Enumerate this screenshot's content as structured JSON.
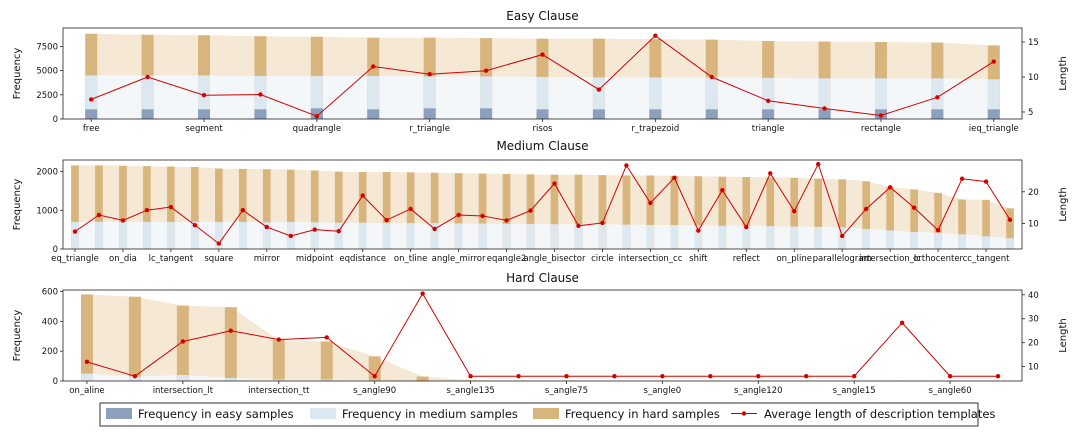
{
  "colors": {
    "easy": "#8c9fbd",
    "medium": "#dde7ef",
    "hard": "#d9b57e",
    "band": "#f5e9d6",
    "line": "#d40000"
  },
  "legend": {
    "easy": "Frequency in easy samples",
    "medium": "Frequency in medium samples",
    "hard": "Frequency in hard samples",
    "line": "Average length of description templates"
  },
  "chart_data": [
    {
      "type": "bar",
      "title": "Easy Clause",
      "ylabel": "Frequency",
      "y2label": "Length",
      "ylim": [
        0,
        9400
      ],
      "y2lim": [
        4,
        17
      ],
      "yticks": [
        0,
        2500,
        5000,
        7500
      ],
      "y2ticks": [
        5,
        10,
        15
      ],
      "categories": [
        "free",
        "segment",
        "quadrangle",
        "r_triangle",
        "risos",
        "r_trapezoid",
        "triangle",
        "rectangle",
        "ieq_triangle"
      ],
      "bars": [
        {
          "easy": 1000,
          "medium": 4500,
          "hard": 8800
        },
        {
          "easy": 1000,
          "medium": 4500,
          "hard": 8700
        },
        {
          "easy": 1000,
          "medium": 4500,
          "hard": 8650
        },
        {
          "easy": 1000,
          "medium": 4450,
          "hard": 8550
        },
        {
          "easy": 1100,
          "medium": 4450,
          "hard": 8500
        },
        {
          "easy": 1000,
          "medium": 4450,
          "hard": 8400
        },
        {
          "easy": 1100,
          "medium": 4400,
          "hard": 8400
        },
        {
          "easy": 1100,
          "medium": 4400,
          "hard": 8350
        },
        {
          "easy": 1000,
          "medium": 4350,
          "hard": 8300
        },
        {
          "easy": 1000,
          "medium": 4300,
          "hard": 8300
        },
        {
          "easy": 1000,
          "medium": 4300,
          "hard": 8250
        },
        {
          "easy": 1000,
          "medium": 4300,
          "hard": 8200
        },
        {
          "easy": 1000,
          "medium": 4250,
          "hard": 8050
        },
        {
          "easy": 1000,
          "medium": 4200,
          "hard": 8000
        },
        {
          "easy": 1000,
          "medium": 4200,
          "hard": 7950
        },
        {
          "easy": 1000,
          "medium": 4200,
          "hard": 7900
        },
        {
          "easy": 1000,
          "medium": 4100,
          "hard": 7600
        }
      ],
      "length": [
        6.8,
        10.0,
        7.4,
        7.5,
        4.4,
        11.5,
        10.4,
        10.9,
        13.2,
        8.2,
        15.9,
        10.0,
        6.6,
        5.5,
        4.5,
        7.1,
        12.2
      ]
    },
    {
      "type": "bar",
      "title": "Medium Clause",
      "ylabel": "Frequency",
      "y2label": "Length",
      "ylim": [
        0,
        2300
      ],
      "y2lim": [
        2,
        30
      ],
      "yticks": [
        0,
        1000,
        2000
      ],
      "y2ticks": [
        10,
        20
      ],
      "categories": [
        "eq_triangle",
        "on_dia",
        "lc_tangent",
        "square",
        "mirror",
        "midpoint",
        "eqdistance",
        "on_tline",
        "angle_mirror",
        "eqangle2",
        "angle_bisector",
        "circle",
        "intersection_cc",
        "shift",
        "reflect",
        "on_pline",
        "parallelogram",
        "intersection_lc",
        "orthocenter",
        "cc_tangent"
      ],
      "bars": [
        {
          "easy": 0,
          "medium": 700,
          "hard": 2160
        },
        {
          "easy": 0,
          "medium": 700,
          "hard": 2160
        },
        {
          "easy": 0,
          "medium": 700,
          "hard": 2150
        },
        {
          "easy": 0,
          "medium": 700,
          "hard": 2140
        },
        {
          "easy": 0,
          "medium": 700,
          "hard": 2130
        },
        {
          "easy": 0,
          "medium": 700,
          "hard": 2120
        },
        {
          "easy": 0,
          "medium": 700,
          "hard": 2080
        },
        {
          "easy": 0,
          "medium": 700,
          "hard": 2070
        },
        {
          "easy": 0,
          "medium": 690,
          "hard": 2060
        },
        {
          "easy": 0,
          "medium": 700,
          "hard": 2050
        },
        {
          "easy": 0,
          "medium": 690,
          "hard": 2030
        },
        {
          "easy": 0,
          "medium": 680,
          "hard": 2000
        },
        {
          "easy": 0,
          "medium": 680,
          "hard": 1990
        },
        {
          "easy": 0,
          "medium": 670,
          "hard": 1990
        },
        {
          "easy": 0,
          "medium": 670,
          "hard": 1980
        },
        {
          "easy": 0,
          "medium": 670,
          "hard": 1970
        },
        {
          "easy": 0,
          "medium": 660,
          "hard": 1960
        },
        {
          "easy": 0,
          "medium": 660,
          "hard": 1950
        },
        {
          "easy": 0,
          "medium": 650,
          "hard": 1940
        },
        {
          "easy": 0,
          "medium": 650,
          "hard": 1930
        },
        {
          "easy": 0,
          "medium": 640,
          "hard": 1920
        },
        {
          "easy": 0,
          "medium": 640,
          "hard": 1920
        },
        {
          "easy": 0,
          "medium": 640,
          "hard": 1910
        },
        {
          "easy": 0,
          "medium": 630,
          "hard": 1900
        },
        {
          "easy": 0,
          "medium": 620,
          "hard": 1900
        },
        {
          "easy": 0,
          "medium": 620,
          "hard": 1890
        },
        {
          "easy": 0,
          "medium": 610,
          "hard": 1880
        },
        {
          "easy": 0,
          "medium": 600,
          "hard": 1870
        },
        {
          "easy": 0,
          "medium": 600,
          "hard": 1860
        },
        {
          "easy": 0,
          "medium": 590,
          "hard": 1850
        },
        {
          "easy": 0,
          "medium": 580,
          "hard": 1840
        },
        {
          "easy": 0,
          "medium": 570,
          "hard": 1820
        },
        {
          "easy": 0,
          "medium": 560,
          "hard": 1800
        },
        {
          "easy": 0,
          "medium": 520,
          "hard": 1750
        },
        {
          "easy": 0,
          "medium": 480,
          "hard": 1600
        },
        {
          "easy": 0,
          "medium": 440,
          "hard": 1540
        },
        {
          "easy": 0,
          "medium": 420,
          "hard": 1450
        },
        {
          "easy": 0,
          "medium": 380,
          "hard": 1280
        },
        {
          "easy": 0,
          "medium": 330,
          "hard": 1270
        },
        {
          "easy": 0,
          "medium": 280,
          "hard": 1050
        }
      ],
      "length": [
        7.5,
        12.7,
        11.0,
        14.2,
        15.2,
        9.5,
        3.7,
        14.2,
        8.9,
        6.1,
        8.1,
        7.6,
        18.8,
        11.1,
        14.6,
        8.3,
        12.7,
        12.4,
        11.0,
        14.1,
        22.6,
        9.3,
        10.2,
        28.3,
        16.5,
        24.4,
        7.8,
        20.5,
        8.9,
        25.8,
        13.9,
        28.7,
        6.1,
        14.6,
        21.4,
        15.0,
        7.9,
        24.1,
        23.2,
        11.2
      ]
    },
    {
      "type": "bar",
      "title": "Hard Clause",
      "ylabel": "Frequency",
      "y2label": "Length",
      "ylim": [
        0,
        610
      ],
      "y2lim": [
        4,
        42
      ],
      "yticks": [
        0,
        200,
        400,
        600
      ],
      "y2ticks": [
        10,
        20,
        30,
        40
      ],
      "categories": [
        "on_aline",
        "intersection_lt",
        "intersection_tt",
        "s_angle90",
        "s_angle135",
        "s_angle75",
        "s_angle0",
        "s_angle120",
        "s_angle15",
        "s_angle60"
      ],
      "bars": [
        {
          "easy": 0,
          "medium": 50,
          "hard": 580
        },
        {
          "easy": 0,
          "medium": 30,
          "hard": 565
        },
        {
          "easy": 0,
          "medium": 40,
          "hard": 505
        },
        {
          "easy": 0,
          "medium": 20,
          "hard": 495
        },
        {
          "easy": 0,
          "medium": 10,
          "hard": 275
        },
        {
          "easy": 0,
          "medium": 10,
          "hard": 265
        },
        {
          "easy": 0,
          "medium": 5,
          "hard": 165
        },
        {
          "easy": 0,
          "medium": 0,
          "hard": 30
        },
        {
          "easy": 0,
          "medium": 0,
          "hard": 4
        },
        {
          "easy": 0,
          "medium": 0,
          "hard": 3
        },
        {
          "easy": 0,
          "medium": 0,
          "hard": 3
        },
        {
          "easy": 0,
          "medium": 0,
          "hard": 2
        },
        {
          "easy": 0,
          "medium": 0,
          "hard": 2
        },
        {
          "easy": 0,
          "medium": 0,
          "hard": 2
        },
        {
          "easy": 0,
          "medium": 0,
          "hard": 2
        },
        {
          "easy": 0,
          "medium": 0,
          "hard": 2
        },
        {
          "easy": 0,
          "medium": 0,
          "hard": 2
        },
        {
          "easy": 0,
          "medium": 0,
          "hard": 2
        },
        {
          "easy": 0,
          "medium": 0,
          "hard": 2
        },
        {
          "easy": 0,
          "medium": 0,
          "hard": 2
        }
      ],
      "length": [
        12.0,
        6.0,
        20.5,
        25.0,
        21.3,
        22.2,
        6.0,
        40.5,
        6.0,
        6.0,
        6.0,
        6.0,
        6.0,
        6.0,
        6.0,
        6.0,
        6.0,
        28.3,
        6.0,
        6.0
      ]
    }
  ]
}
